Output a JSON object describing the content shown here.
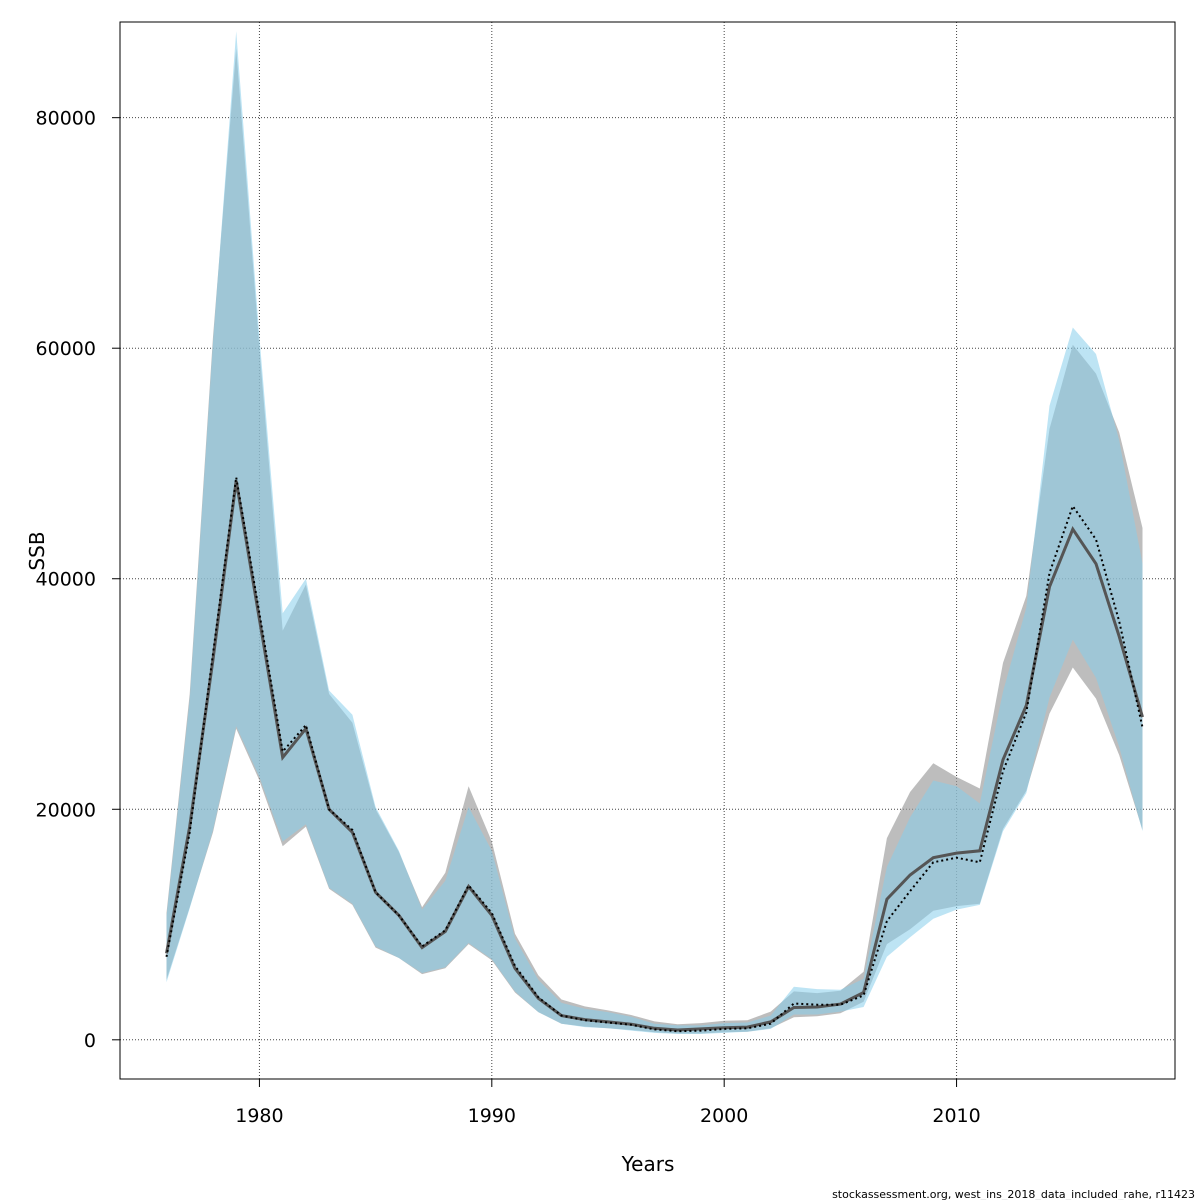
{
  "chart_data": {
    "type": "area",
    "xlabel": "Years",
    "ylabel": "SSB",
    "xlim": [
      1974,
      2019.4
    ],
    "ylim": [
      -3400,
      88300
    ],
    "xticks": [
      1980,
      1990,
      2000,
      2010
    ],
    "yticks": [
      0,
      20000,
      40000,
      60000,
      80000
    ],
    "grid": true,
    "footer": "stockassessment.org, west_ins_2018_data_included_rahe, r11423",
    "colors": {
      "band_a": "#999999",
      "band_b": "#87ceeb",
      "line_a": "#555555",
      "line_b": "#000000"
    },
    "x": [
      1976,
      1977,
      1978,
      1979,
      1980,
      1981,
      1982,
      1983,
      1984,
      1985,
      1986,
      1987,
      1988,
      1989,
      1990,
      1991,
      1992,
      1993,
      1994,
      1995,
      1996,
      1997,
      1998,
      1999,
      2000,
      2001,
      2002,
      2003,
      2004,
      2005,
      2006,
      2007,
      2008,
      2009,
      2010,
      2011,
      2012,
      2013,
      2014,
      2015,
      2016,
      2017,
      2018
    ],
    "series": [
      {
        "style": "solid",
        "estimate": [
          7500,
          18500,
          33000,
          48500,
          36500,
          24500,
          27000,
          20000,
          18000,
          12800,
          10800,
          8000,
          9400,
          13300,
          10800,
          6200,
          3600,
          2100,
          1750,
          1550,
          1350,
          1000,
          850,
          950,
          1050,
          1100,
          1550,
          2800,
          2850,
          3100,
          4100,
          12200,
          14300,
          15800,
          16200,
          16400,
          24300,
          29000,
          39300,
          44300,
          41300,
          35000,
          28000
        ],
        "lower": [
          5200,
          11500,
          18000,
          27000,
          22500,
          16800,
          18500,
          13100,
          11700,
          8000,
          7100,
          5700,
          6200,
          8300,
          6900,
          4100,
          2400,
          1400,
          1150,
          1000,
          850,
          650,
          550,
          550,
          650,
          700,
          1000,
          1950,
          2050,
          2300,
          3300,
          8300,
          9600,
          11200,
          11600,
          11800,
          18300,
          21600,
          28300,
          32300,
          29600,
          24700,
          18200
        ],
        "upper": [
          11000,
          30000,
          61000,
          86000,
          60000,
          35500,
          39500,
          30000,
          27500,
          20000,
          16300,
          11500,
          14500,
          22000,
          17200,
          9200,
          5600,
          3500,
          2900,
          2550,
          2150,
          1600,
          1350,
          1450,
          1650,
          1700,
          2450,
          4200,
          4050,
          4250,
          5900,
          17500,
          21500,
          24000,
          22800,
          21800,
          32700,
          38500,
          53000,
          60300,
          57800,
          52700,
          44400
        ]
      },
      {
        "style": "dotted",
        "estimate": [
          7200,
          18000,
          33500,
          48800,
          37000,
          25000,
          27300,
          20000,
          18200,
          12800,
          10800,
          8100,
          9500,
          13400,
          11000,
          6400,
          3700,
          2100,
          1700,
          1500,
          1300,
          900,
          750,
          800,
          950,
          1000,
          1400,
          3150,
          3050,
          3050,
          3850,
          10300,
          12900,
          15400,
          15800,
          15400,
          23300,
          28400,
          40500,
          46300,
          43400,
          36300,
          27100
        ],
        "lower": [
          5000,
          11400,
          18200,
          27200,
          22800,
          17200,
          18700,
          13200,
          11800,
          8100,
          7100,
          5800,
          6300,
          8400,
          7000,
          4200,
          2400,
          1400,
          1100,
          1000,
          800,
          600,
          500,
          500,
          600,
          700,
          950,
          2200,
          2200,
          2450,
          2850,
          7200,
          8900,
          10500,
          11300,
          11700,
          18100,
          21400,
          29700,
          34700,
          31400,
          25400,
          18100
        ],
        "upper": [
          10700,
          29500,
          60500,
          87500,
          61000,
          37000,
          40000,
          30300,
          28200,
          20200,
          16400,
          11300,
          13800,
          20200,
          16400,
          8800,
          5200,
          3200,
          2700,
          2400,
          2000,
          1400,
          1250,
          1250,
          1450,
          1500,
          2100,
          4600,
          4400,
          4350,
          5300,
          15000,
          19300,
          22500,
          22000,
          20500,
          30200,
          37500,
          55000,
          61800,
          59500,
          52000,
          41300
        ]
      }
    ]
  }
}
